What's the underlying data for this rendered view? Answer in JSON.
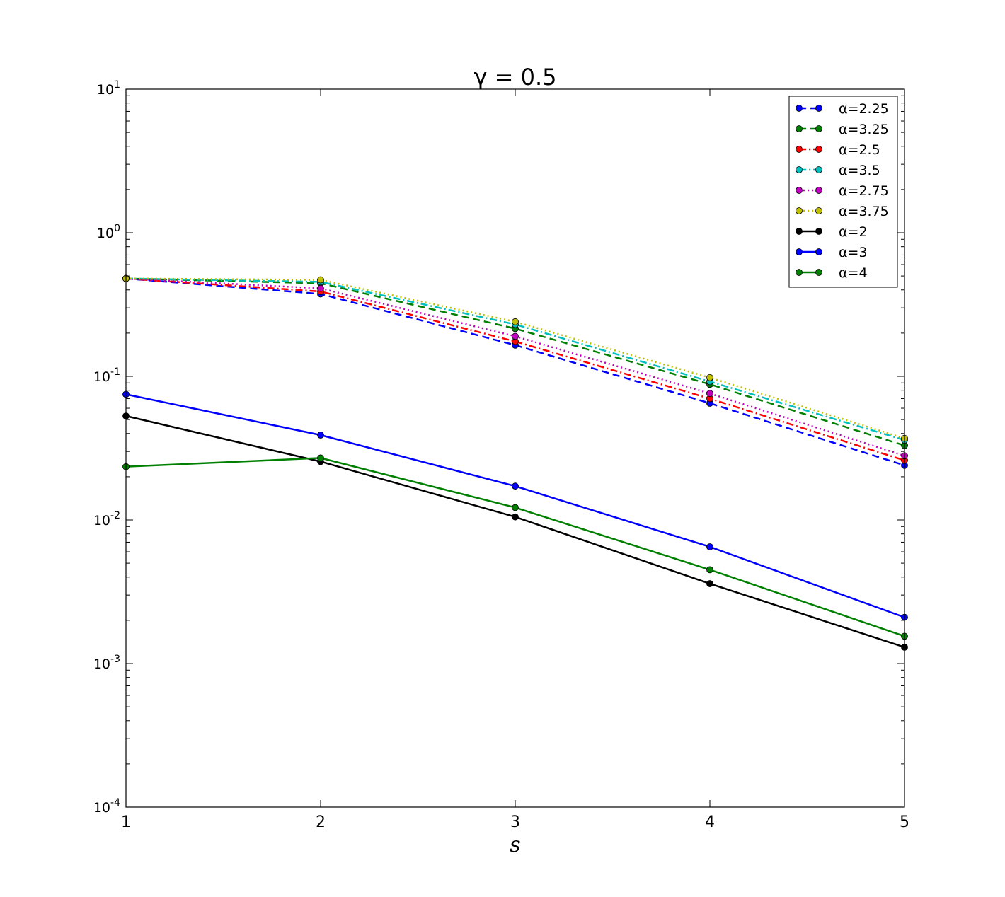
{
  "chart_data": {
    "type": "line",
    "title": "γ = 0.5",
    "xlabel": "s",
    "ylabel": "",
    "xlim": [
      1,
      5
    ],
    "ylim": [
      0.0001,
      10
    ],
    "yscale": "log",
    "x_ticks": [
      "1",
      "2",
      "3",
      "4",
      "5"
    ],
    "y_ticks": [
      {
        "base": "10",
        "exp": "-4"
      },
      {
        "base": "10",
        "exp": "-3"
      },
      {
        "base": "10",
        "exp": "-2"
      },
      {
        "base": "10",
        "exp": "-1"
      },
      {
        "base": "10",
        "exp": "0"
      },
      {
        "base": "10",
        "exp": "1"
      }
    ],
    "legend_position": "top-right",
    "grid": false,
    "x": [
      1,
      2,
      3,
      4,
      5
    ],
    "series": [
      {
        "name": "α=2.25",
        "color": "#0000ff",
        "dash": "dashed",
        "values": [
          0.48,
          0.375,
          0.165,
          0.065,
          0.024
        ]
      },
      {
        "name": "α=3.25",
        "color": "#008000",
        "dash": "dashed",
        "values": [
          0.48,
          0.445,
          0.215,
          0.088,
          0.033
        ]
      },
      {
        "name": "α=2.5",
        "color": "#ff0000",
        "dash": "dashdot",
        "values": [
          0.48,
          0.39,
          0.175,
          0.07,
          0.026
        ]
      },
      {
        "name": "α=3.5",
        "color": "#00bfbf",
        "dash": "dashdot",
        "values": [
          0.48,
          0.455,
          0.23,
          0.092,
          0.036
        ]
      },
      {
        "name": "α=2.75",
        "color": "#bf00bf",
        "dash": "dotted",
        "values": [
          0.48,
          0.41,
          0.19,
          0.076,
          0.028
        ]
      },
      {
        "name": "α=3.75",
        "color": "#bfbf00",
        "dash": "dotted",
        "values": [
          0.48,
          0.47,
          0.24,
          0.098,
          0.037
        ]
      },
      {
        "name": "α=2",
        "color": "#000000",
        "dash": "solid",
        "values": [
          0.053,
          0.0255,
          0.0105,
          0.0036,
          0.0013
        ]
      },
      {
        "name": "α=3",
        "color": "#0000ff",
        "dash": "solid",
        "values": [
          0.075,
          0.039,
          0.0172,
          0.0065,
          0.0021
        ]
      },
      {
        "name": "α=4",
        "color": "#008000",
        "dash": "solid",
        "values": [
          0.0235,
          0.027,
          0.0122,
          0.0045,
          0.00155
        ]
      }
    ]
  }
}
